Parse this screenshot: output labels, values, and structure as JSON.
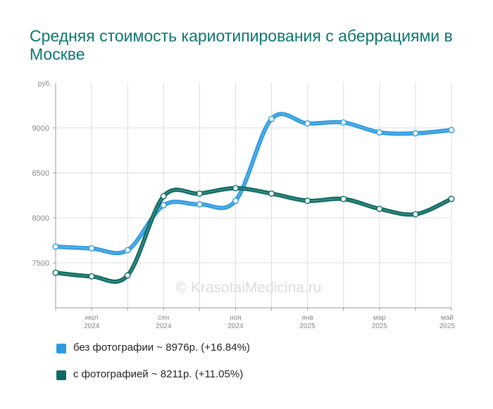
{
  "title": "Средняя стоимость кариотипирования с аберрациями в Москве",
  "watermark": "© KrasotaiMedicina.ru",
  "legend": [
    {
      "label": "без фотографии ~ 8976р. (+16.84%)",
      "color": "#2e9be0"
    },
    {
      "label": "с фотографией ~ 8211р. (+11.05%)",
      "color": "#0d6b62"
    }
  ],
  "chart_data": {
    "type": "line",
    "ylabel": "руб.",
    "ylim": [
      7000,
      9500
    ],
    "yticks": [
      7500,
      8000,
      8500,
      9000
    ],
    "x": [
      "2024-06",
      "2024-07",
      "2024-08",
      "2024-09",
      "2024-10",
      "2024-11",
      "2024-12",
      "2025-01",
      "2025-02",
      "2025-03",
      "2025-04",
      "2025-05"
    ],
    "xtick_labels": [
      {
        "index": 1,
        "line1": "июл",
        "line2": "2024"
      },
      {
        "index": 3,
        "line1": "сен",
        "line2": "2024"
      },
      {
        "index": 5,
        "line1": "ноя",
        "line2": "2024"
      },
      {
        "index": 7,
        "line1": "янв",
        "line2": "2025"
      },
      {
        "index": 9,
        "line1": "мар",
        "line2": "2025"
      },
      {
        "index": 11,
        "line1": "май",
        "line2": "2025"
      }
    ],
    "grid": true,
    "series": [
      {
        "name": "без фотографии",
        "color": "#2e9be0",
        "values": [
          7680,
          7660,
          7640,
          8140,
          8150,
          8190,
          9100,
          9050,
          9060,
          8950,
          8940,
          8976
        ]
      },
      {
        "name": "с фотографией",
        "color": "#0d6b62",
        "values": [
          7390,
          7350,
          7360,
          8240,
          8270,
          8330,
          8270,
          8190,
          8210,
          8100,
          8040,
          8211
        ]
      }
    ]
  }
}
